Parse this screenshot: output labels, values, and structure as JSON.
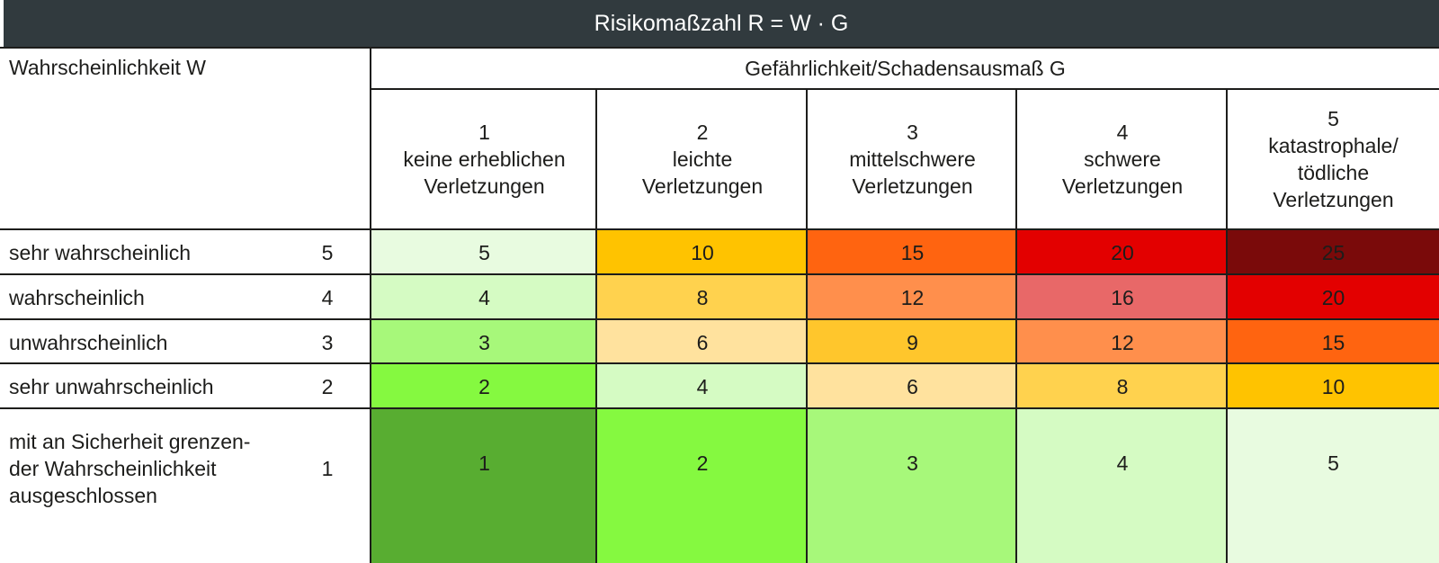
{
  "title": "Risikomaßzahl R = W · G",
  "w_header": "Wahrscheinlichkeit W",
  "g_header": "Gefährlichkeit/Schadensausmaß G",
  "g_columns": [
    {
      "num": "1",
      "lines": [
        "keine erheblichen",
        "Verletzungen"
      ]
    },
    {
      "num": "2",
      "lines": [
        "leichte",
        "Verletzungen"
      ]
    },
    {
      "num": "3",
      "lines": [
        "mittelschwere",
        "Verletzungen"
      ]
    },
    {
      "num": "4",
      "lines": [
        "schwere",
        "Verletzungen"
      ]
    },
    {
      "num": "5",
      "lines": [
        "katastrophale/",
        "tödliche",
        "Verletzungen"
      ]
    }
  ],
  "w_rows": [
    {
      "label_lines": [
        "sehr wahrscheinlich"
      ],
      "w": "5",
      "cells": [
        {
          "v": "5",
          "c": "#e8fbe0"
        },
        {
          "v": "10",
          "c": "#ffc300"
        },
        {
          "v": "15",
          "c": "#ff6410"
        },
        {
          "v": "20",
          "c": "#e30000"
        },
        {
          "v": "25",
          "c": "#7a0a0a"
        }
      ]
    },
    {
      "label_lines": [
        "wahrscheinlich"
      ],
      "w": "4",
      "cells": [
        {
          "v": "4",
          "c": "#d5fbc3"
        },
        {
          "v": "8",
          "c": "#ffd24e"
        },
        {
          "v": "12",
          "c": "#ff8f4c"
        },
        {
          "v": "16",
          "c": "#e86868"
        },
        {
          "v": "20",
          "c": "#e30000"
        }
      ]
    },
    {
      "label_lines": [
        "unwahrscheinlich"
      ],
      "w": "3",
      "cells": [
        {
          "v": "3",
          "c": "#a7f87a"
        },
        {
          "v": "6",
          "c": "#ffe29e"
        },
        {
          "v": "9",
          "c": "#ffc62c"
        },
        {
          "v": "12",
          "c": "#ff8f4c"
        },
        {
          "v": "15",
          "c": "#ff6410"
        }
      ]
    },
    {
      "label_lines": [
        "sehr unwahrscheinlich"
      ],
      "w": "2",
      "cells": [
        {
          "v": "2",
          "c": "#85f940"
        },
        {
          "v": "4",
          "c": "#d5fbc3"
        },
        {
          "v": "6",
          "c": "#ffe29e"
        },
        {
          "v": "8",
          "c": "#ffd24e"
        },
        {
          "v": "10",
          "c": "#ffc300"
        }
      ]
    },
    {
      "label_lines": [
        "mit an Sicherheit grenzen-",
        "der Wahrscheinlichkeit",
        "ausgeschlossen"
      ],
      "w": "1",
      "cells": [
        {
          "v": "1",
          "c": "#58ad31"
        },
        {
          "v": "2",
          "c": "#85f940"
        },
        {
          "v": "3",
          "c": "#a7f87a"
        },
        {
          "v": "4",
          "c": "#d5fbc3"
        },
        {
          "v": "5",
          "c": "#e8fbe0"
        }
      ]
    }
  ]
}
